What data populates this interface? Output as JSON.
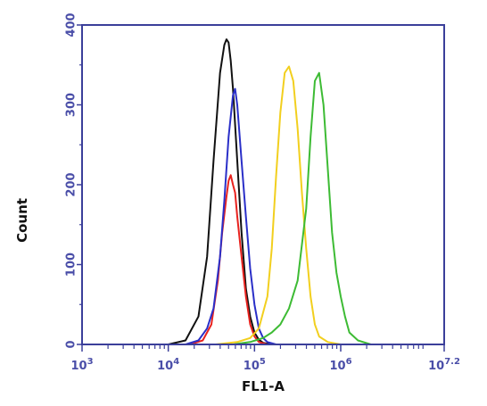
{
  "chart_data": {
    "type": "line",
    "title": "",
    "xlabel": "FL1-A",
    "ylabel": "Count",
    "xscale": "log",
    "xlim": [
      1000,
      15848932
    ],
    "ylim": [
      0,
      400
    ],
    "x_ticks": [
      {
        "value": 1000,
        "label": "10^3"
      },
      {
        "value": 10000,
        "label": "10^4"
      },
      {
        "value": 100000,
        "label": "10^5"
      },
      {
        "value": 1000000,
        "label": "10^6"
      },
      {
        "value": 15848932,
        "label": "10^7.2"
      }
    ],
    "y_ticks": [
      {
        "value": 0,
        "label": "0"
      },
      {
        "value": 100,
        "label": "100"
      },
      {
        "value": 200,
        "label": "200"
      },
      {
        "value": 300,
        "label": "300"
      },
      {
        "value": 400,
        "label": "400"
      }
    ],
    "grid": false,
    "colors": {
      "frame": "#3b3f9a",
      "tick_text": "#4a4ea8",
      "axis_label": "#111111"
    },
    "series": [
      {
        "color": "#111111",
        "x": [
          1000,
          10000,
          15849,
          22387,
          28184,
          33497,
          39811,
          44668,
          47315,
          50119,
          53088,
          56234,
          63096,
          70795,
          79433,
          89125,
          100000,
          112202,
          125893,
          158489,
          15848932
        ],
        "y": [
          0,
          0,
          5,
          35,
          110,
          230,
          340,
          375,
          382,
          378,
          355,
          320,
          230,
          140,
          70,
          35,
          15,
          6,
          2,
          0,
          0
        ]
      },
      {
        "color": "#e8221e",
        "x": [
          1000,
          17783,
          25119,
          31623,
          37584,
          42170,
          47315,
          50119,
          53088,
          56234,
          59566,
          63096,
          70795,
          79433,
          89125,
          100000,
          112202,
          141254,
          15848932
        ],
        "y": [
          0,
          0,
          5,
          25,
          80,
          140,
          185,
          205,
          212,
          200,
          190,
          160,
          110,
          60,
          25,
          10,
          3,
          0,
          0
        ]
      },
      {
        "color": "#2a2fc8",
        "x": [
          1000,
          15849,
          22387,
          28184,
          33497,
          39811,
          44668,
          50119,
          56234,
          59566,
          63096,
          70795,
          79433,
          89125,
          100000,
          112202,
          125893,
          141254,
          177828,
          15848932
        ],
        "y": [
          0,
          0,
          5,
          20,
          45,
          110,
          180,
          260,
          312,
          320,
          300,
          230,
          160,
          95,
          50,
          20,
          8,
          3,
          0,
          0
        ]
      },
      {
        "color": "#f2cf1e",
        "x": [
          1000,
          35481,
          63096,
          89125,
          112202,
          141254,
          158489,
          177828,
          199526,
          223872,
          251189,
          281838,
          316228,
          354813,
          398107,
          446684,
          501187,
          562341,
          707946,
          1000000,
          15848932
        ],
        "y": [
          0,
          0,
          3,
          8,
          20,
          60,
          120,
          210,
          290,
          340,
          348,
          330,
          270,
          190,
          120,
          60,
          25,
          10,
          3,
          0,
          0
        ]
      },
      {
        "color": "#3dbb34",
        "x": [
          1000,
          56234,
          89125,
          125893,
          158489,
          199526,
          251189,
          316228,
          398107,
          446684,
          501187,
          562341,
          630957,
          707946,
          794328,
          891251,
          1000000,
          1122018,
          1258925,
          1584893,
          2238721,
          15848932
        ],
        "y": [
          0,
          0,
          3,
          8,
          15,
          25,
          45,
          80,
          170,
          260,
          330,
          340,
          300,
          220,
          140,
          90,
          60,
          35,
          15,
          5,
          0,
          0
        ]
      }
    ]
  }
}
